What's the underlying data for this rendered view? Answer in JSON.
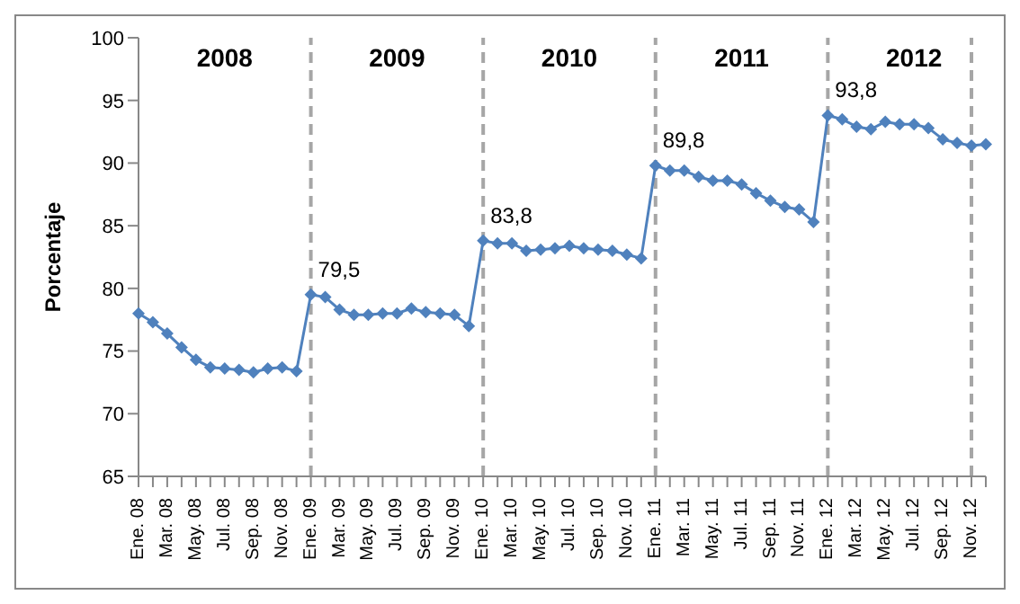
{
  "chart_data": {
    "type": "line",
    "ylabel": "Porcentaje",
    "categories": [
      "Ene. 08",
      null,
      "Mar. 08",
      null,
      "May. 08",
      null,
      "Jul. 08",
      null,
      "Sep. 08",
      null,
      "Nov. 08",
      null,
      "Ene. 09",
      null,
      "Mar. 09",
      null,
      "May. 09",
      null,
      "Jul. 09",
      null,
      "Sep. 09",
      null,
      "Nov. 09",
      null,
      "Ene. 10",
      null,
      "Mar. 10",
      null,
      "May. 10",
      null,
      "Jul. 10",
      null,
      "Sep. 10",
      null,
      "Nov. 10",
      null,
      "Ene. 11",
      null,
      "Mar. 11",
      null,
      "May. 11",
      null,
      "Jul. 11",
      null,
      "Sep. 11",
      null,
      "Nov. 11",
      null,
      "Ene. 12",
      null,
      "Mar. 12",
      null,
      "May. 12",
      null,
      "Jul. 12",
      null,
      "Sep. 12",
      null,
      "Nov. 12",
      null
    ],
    "series": [
      {
        "color": "#4f81bd",
        "values": [
          78.0,
          77.3,
          76.4,
          75.3,
          74.3,
          73.7,
          73.6,
          73.5,
          73.3,
          73.6,
          73.7,
          73.4,
          79.5,
          79.3,
          78.3,
          77.9,
          77.9,
          78.0,
          78.0,
          78.4,
          78.1,
          78.0,
          77.9,
          77.0,
          83.8,
          83.6,
          83.6,
          83.0,
          83.1,
          83.2,
          83.4,
          83.2,
          83.1,
          83.0,
          82.7,
          82.4,
          89.8,
          89.4,
          89.4,
          88.9,
          88.6,
          88.6,
          88.3,
          87.6,
          87.0,
          86.5,
          86.3,
          85.3,
          93.8,
          93.5,
          92.9,
          92.7,
          93.3,
          93.1,
          93.1,
          92.8,
          91.9,
          91.6,
          91.4,
          91.5
        ],
        "value_labels": [
          null,
          null,
          null,
          null,
          null,
          null,
          null,
          null,
          null,
          null,
          null,
          null,
          "79,5",
          null,
          null,
          null,
          null,
          null,
          null,
          null,
          null,
          null,
          null,
          null,
          "83,8",
          null,
          null,
          null,
          null,
          null,
          null,
          null,
          null,
          null,
          null,
          null,
          "89,8",
          null,
          null,
          null,
          null,
          null,
          null,
          null,
          null,
          null,
          null,
          null,
          "93,8",
          null,
          null,
          null,
          null,
          null,
          null,
          null,
          null,
          null,
          null,
          null
        ]
      }
    ],
    "ylim": [
      65,
      100
    ],
    "yticks": [
      65,
      70,
      75,
      80,
      85,
      90,
      95,
      100
    ],
    "grid": false,
    "legend": false,
    "marker": "diamond",
    "line_style": "solid",
    "annotations": [
      "2008",
      "2009",
      "2010",
      "2011",
      "2012"
    ],
    "ref_lines": [
      {
        "axis": "x",
        "value": "Ene. 09",
        "color": "#a6a6a6",
        "line_style": "dashed"
      },
      {
        "axis": "x",
        "value": "Ene. 10",
        "color": "#a6a6a6",
        "line_style": "dashed"
      },
      {
        "axis": "x",
        "value": "Ene. 11",
        "color": "#a6a6a6",
        "line_style": "dashed"
      },
      {
        "axis": "x",
        "value": "Ene. 12",
        "color": "#a6a6a6",
        "line_style": "dashed"
      },
      {
        "axis": "x",
        "value": "Nov. 12",
        "color": "#a6a6a6",
        "line_style": "dashed"
      }
    ]
  }
}
